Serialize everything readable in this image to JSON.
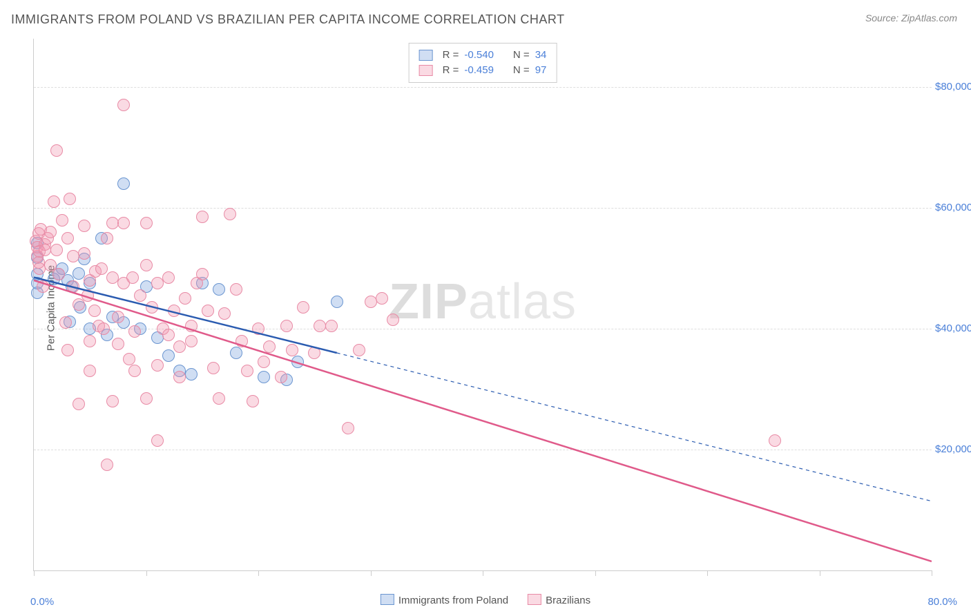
{
  "title": "IMMIGRANTS FROM POLAND VS BRAZILIAN PER CAPITA INCOME CORRELATION CHART",
  "source_label": "Source: ZipAtlas.com",
  "watermark": {
    "bold": "ZIP",
    "rest": "atlas"
  },
  "chart": {
    "type": "scatter",
    "xlim": [
      0,
      80
    ],
    "ylim": [
      0,
      88000
    ],
    "xlabel_min": "0.0%",
    "xlabel_max": "80.0%",
    "ylabel": "Per Capita Income",
    "yticks": [
      20000,
      40000,
      60000,
      80000
    ],
    "ytick_labels": [
      "$20,000",
      "$40,000",
      "$60,000",
      "$80,000"
    ],
    "xtick_positions": [
      0,
      10,
      20,
      30,
      40,
      50,
      60,
      70,
      80
    ],
    "grid_color": "#dddddd",
    "axis_color": "#cccccc",
    "background_color": "#ffffff",
    "value_color": "#4a7fd8",
    "label_color": "#555555",
    "marker_radius": 8,
    "series": [
      {
        "name": "Immigrants from Poland",
        "fill": "rgba(120,160,220,0.35)",
        "stroke": "#6a95d0",
        "line_color": "#2a5bb0",
        "line_width": 2.5,
        "r_value": "-0.540",
        "n_value": "34",
        "regression": {
          "x1": 0,
          "y1": 48500,
          "x2": 27,
          "y2": 36000
        },
        "points": [
          [
            0.3,
            46000
          ],
          [
            0.3,
            47500
          ],
          [
            0.3,
            49000
          ],
          [
            0.3,
            51800
          ],
          [
            0.3,
            54200
          ],
          [
            1.8,
            48200
          ],
          [
            2.2,
            49000
          ],
          [
            2.5,
            50000
          ],
          [
            3.0,
            48000
          ],
          [
            3.2,
            41200
          ],
          [
            3.4,
            47000
          ],
          [
            4.0,
            49200
          ],
          [
            4.1,
            43500
          ],
          [
            4.5,
            51500
          ],
          [
            5.0,
            40000
          ],
          [
            5.0,
            47500
          ],
          [
            6.0,
            55000
          ],
          [
            6.5,
            39000
          ],
          [
            7.0,
            42000
          ],
          [
            8.0,
            64000
          ],
          [
            8.0,
            41000
          ],
          [
            9.5,
            40000
          ],
          [
            10.0,
            47000
          ],
          [
            11.0,
            38500
          ],
          [
            12.0,
            35500
          ],
          [
            13.0,
            33000
          ],
          [
            14.0,
            32500
          ],
          [
            15.0,
            47500
          ],
          [
            16.5,
            46500
          ],
          [
            18.0,
            36000
          ],
          [
            20.5,
            32000
          ],
          [
            22.5,
            31500
          ],
          [
            23.5,
            34500
          ],
          [
            27.0,
            44500
          ]
        ]
      },
      {
        "name": "Brazilians",
        "fill": "rgba(240,150,175,0.35)",
        "stroke": "#e88aa5",
        "line_color": "#e05a8a",
        "line_width": 2.5,
        "r_value": "-0.459",
        "n_value": "97",
        "regression": {
          "x1": 0,
          "y1": 48000,
          "x2": 80,
          "y2": 1500
        },
        "points": [
          [
            0.2,
            54500
          ],
          [
            0.3,
            53500
          ],
          [
            0.3,
            52000
          ],
          [
            0.4,
            51000
          ],
          [
            0.4,
            55800
          ],
          [
            0.5,
            52800
          ],
          [
            0.5,
            50000
          ],
          [
            0.6,
            56500
          ],
          [
            0.8,
            47000
          ],
          [
            1.0,
            54000
          ],
          [
            1.0,
            53000
          ],
          [
            1.2,
            55000
          ],
          [
            1.5,
            50500
          ],
          [
            1.5,
            56000
          ],
          [
            1.8,
            61000
          ],
          [
            2.0,
            69500
          ],
          [
            2.0,
            53000
          ],
          [
            2.2,
            49000
          ],
          [
            2.5,
            58000
          ],
          [
            2.8,
            41000
          ],
          [
            3.0,
            55000
          ],
          [
            3.0,
            36500
          ],
          [
            3.2,
            61500
          ],
          [
            3.5,
            47000
          ],
          [
            3.5,
            52000
          ],
          [
            4.0,
            44000
          ],
          [
            4.0,
            27500
          ],
          [
            4.5,
            52500
          ],
          [
            4.5,
            57000
          ],
          [
            4.8,
            45500
          ],
          [
            5.0,
            48000
          ],
          [
            5.0,
            38000
          ],
          [
            5.0,
            33000
          ],
          [
            5.4,
            43000
          ],
          [
            5.5,
            49500
          ],
          [
            5.8,
            40500
          ],
          [
            6.0,
            50000
          ],
          [
            6.2,
            40000
          ],
          [
            6.5,
            17500
          ],
          [
            6.5,
            55000
          ],
          [
            7.0,
            57500
          ],
          [
            7.0,
            48500
          ],
          [
            7.0,
            28000
          ],
          [
            7.5,
            37500
          ],
          [
            7.5,
            42000
          ],
          [
            8.0,
            57500
          ],
          [
            8.0,
            47500
          ],
          [
            8.0,
            77000
          ],
          [
            8.5,
            35000
          ],
          [
            8.8,
            48500
          ],
          [
            9.0,
            39500
          ],
          [
            9.0,
            33000
          ],
          [
            9.5,
            45500
          ],
          [
            10.0,
            50500
          ],
          [
            10.0,
            57500
          ],
          [
            10.0,
            28500
          ],
          [
            10.5,
            43500
          ],
          [
            11.0,
            34000
          ],
          [
            11.0,
            47500
          ],
          [
            11.0,
            21500
          ],
          [
            11.5,
            40000
          ],
          [
            12.0,
            48500
          ],
          [
            12.0,
            39000
          ],
          [
            12.5,
            43000
          ],
          [
            13.0,
            37000
          ],
          [
            13.0,
            32000
          ],
          [
            13.5,
            45000
          ],
          [
            14.0,
            40500
          ],
          [
            14.0,
            38000
          ],
          [
            14.5,
            47500
          ],
          [
            15.0,
            49000
          ],
          [
            15.0,
            58500
          ],
          [
            15.5,
            43000
          ],
          [
            16.0,
            33500
          ],
          [
            16.5,
            28500
          ],
          [
            17.0,
            42500
          ],
          [
            17.5,
            59000
          ],
          [
            18.0,
            46500
          ],
          [
            18.5,
            38000
          ],
          [
            19.0,
            33000
          ],
          [
            19.5,
            28000
          ],
          [
            20.0,
            40000
          ],
          [
            20.5,
            34500
          ],
          [
            21.0,
            37000
          ],
          [
            22.0,
            32000
          ],
          [
            22.5,
            40500
          ],
          [
            23.0,
            36500
          ],
          [
            24.0,
            43500
          ],
          [
            25.0,
            36000
          ],
          [
            25.5,
            40500
          ],
          [
            26.5,
            40500
          ],
          [
            28.0,
            23500
          ],
          [
            29.0,
            36500
          ],
          [
            30.0,
            44500
          ],
          [
            31.0,
            45000
          ],
          [
            32.0,
            41500
          ],
          [
            66.0,
            21500
          ]
        ]
      }
    ]
  },
  "legend": {
    "r_label": "R =",
    "n_label": "N ="
  }
}
